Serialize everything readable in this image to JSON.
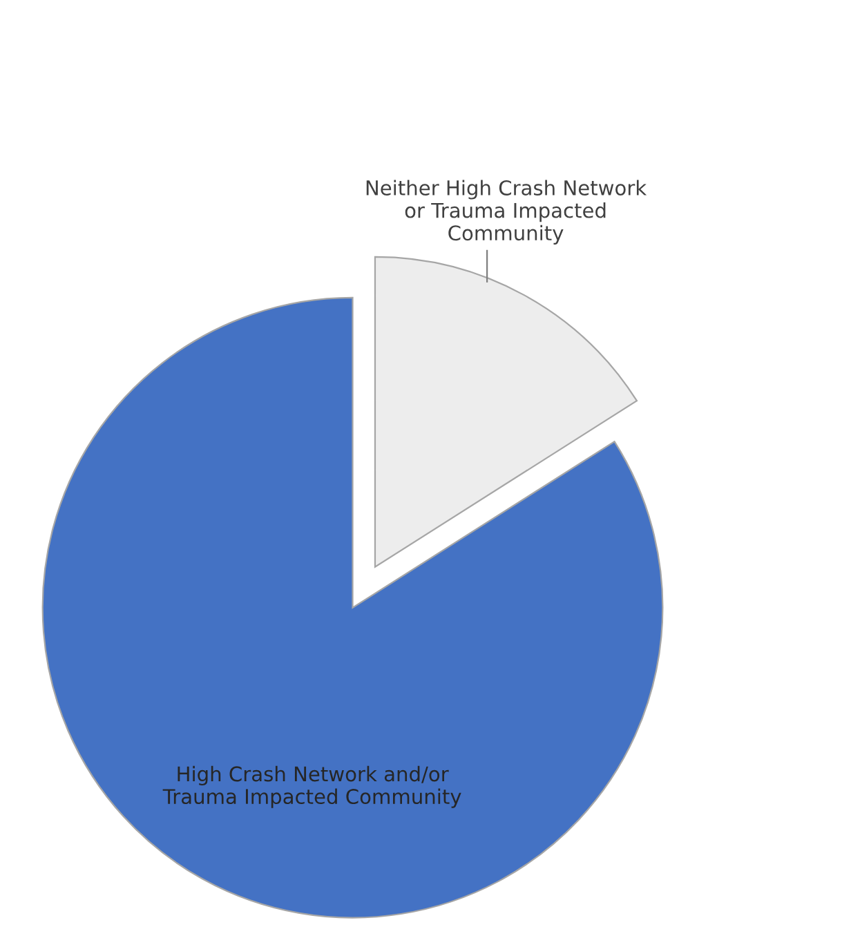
{
  "chart_data": {
    "type": "pie",
    "categories": [
      "Neither High Crash Network\nor Trauma Impacted\nCommunity",
      "High Crash Network and/or\nTrauma Impacted Community"
    ],
    "values": [
      16,
      84
    ],
    "colors": [
      "#ededed",
      "#4472c4"
    ]
  }
}
